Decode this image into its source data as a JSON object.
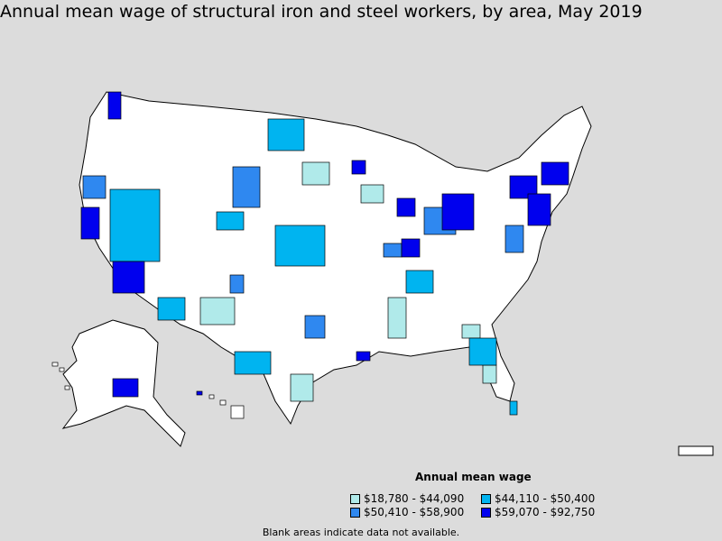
{
  "title": "Annual mean wage of structural iron and steel workers, by area, May 2019",
  "legend": {
    "title": "Annual mean wage",
    "items": [
      {
        "label": "$18,780 - $44,090",
        "color": "#b0eaea"
      },
      {
        "label": "$44,110 - $50,400",
        "color": "#00b4f0"
      },
      {
        "label": "$50,410 - $58,900",
        "color": "#2f88f0"
      },
      {
        "label": "$59,070 - $92,750",
        "color": "#0000ee"
      }
    ]
  },
  "footnote": "Blank areas indicate data not available.",
  "colors": {
    "background": "#dcdcdc",
    "blank_area": "#ffffff",
    "border": "#000000"
  }
}
